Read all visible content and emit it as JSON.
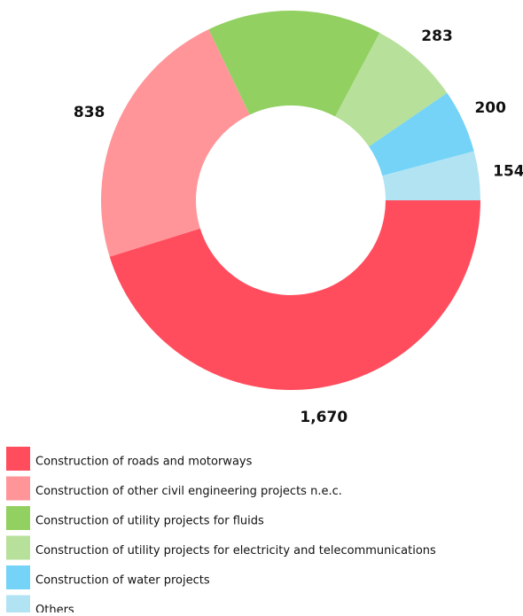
{
  "chart_data": {
    "type": "donut",
    "categories": [
      "Construction of roads and motorways",
      "Construction of other civil engineering projects n.e.c.",
      "Construction of utility projects for fluids",
      "Construction of utility projects for electricity and telecommunications",
      "Construction of water projects",
      "Others"
    ],
    "values": [
      1670,
      838,
      550,
      283,
      200,
      154
    ],
    "value_labels": [
      "1,670",
      "838",
      null,
      "283",
      "200",
      "154"
    ],
    "colors": [
      "#ff4d5e",
      "#ff9599",
      "#92d061",
      "#b7e09a",
      "#74d3f7",
      "#b1e3f3"
    ],
    "legend": "bottom-left"
  }
}
